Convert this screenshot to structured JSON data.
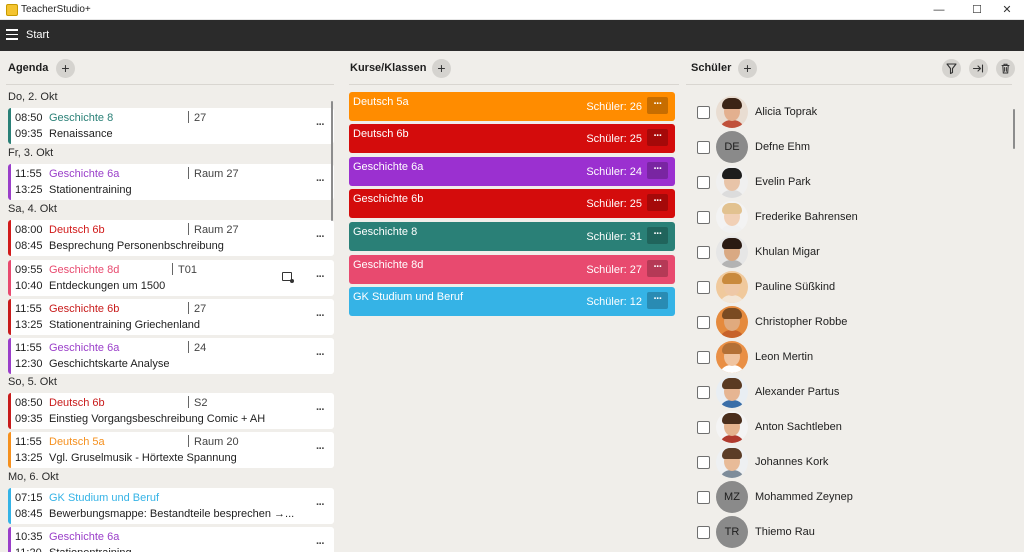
{
  "window": {
    "title": "TeacherStudio+",
    "minimize": "—",
    "maximize": "☐",
    "close": "✕"
  },
  "header": {
    "title": "Start"
  },
  "agenda": {
    "title": "Agenda",
    "add_label": "+",
    "more_label": "···",
    "days": [
      {
        "label": "Do, 2. Okt",
        "events": [
          {
            "start": "08:50",
            "end": "09:35",
            "course": "Geschichte 8",
            "room": "27",
            "title": "Renaissance",
            "color": "#2a8077"
          }
        ]
      },
      {
        "label": "Fr, 3. Okt",
        "events": [
          {
            "start": "11:55",
            "end": "13:25",
            "course": "Geschichte 6a",
            "room": "Raum 27",
            "title": "Stationentraining",
            "color": "#9a3ec9"
          }
        ]
      },
      {
        "label": "Sa, 4. Okt",
        "events": [
          {
            "start": "08:00",
            "end": "08:45",
            "course": "Deutsch 6b",
            "room": "Raum 27",
            "title": "Besprechung Personenbschreibung",
            "color": "#d11a1a"
          },
          {
            "start": "09:55",
            "end": "10:40",
            "course": "Geschichte 8d",
            "room": "T01",
            "title": "Entdeckungen um 1500",
            "color": "#e84a6f",
            "has_notes": true
          },
          {
            "start": "11:55",
            "end": "13:25",
            "course": "Geschichte 6b",
            "room": "27",
            "title": "Stationentraining Griechenland",
            "color": "#c81b1b"
          },
          {
            "start": "11:55",
            "end": "12:30",
            "course": "Geschichte 6a",
            "room": "24",
            "title": "Geschichtskarte Analyse",
            "color": "#9a3ec9"
          }
        ]
      },
      {
        "label": "So, 5. Okt",
        "events": [
          {
            "start": "08:50",
            "end": "09:35",
            "course": "Deutsch 6b",
            "room": "S2",
            "title": "Einstieg Vorgangsbeschreibung Comic + AH",
            "color": "#c81b1b"
          },
          {
            "start": "11:55",
            "end": "13:25",
            "course": "Deutsch 5a",
            "room": "Raum 20",
            "title": "Vgl. Gruselmusik - Hörtexte Spannung",
            "color": "#f5901e"
          }
        ]
      },
      {
        "label": "Mo, 6. Okt",
        "events": [
          {
            "start": "07:15",
            "end": "08:45",
            "course": "GK Studium und Beruf",
            "room": "",
            "title": "Bewerbungsmappe: Bestandteile besprechen →...",
            "color": "#35b3e6"
          },
          {
            "start": "10:35",
            "end": "11:20",
            "course": "Geschichte 6a",
            "room": "",
            "title": "Stationentraining",
            "color": "#9a3ec9"
          }
        ]
      }
    ]
  },
  "kurse": {
    "title": "Kurse/Klassen",
    "add_label": "+",
    "more_label": "···",
    "items": [
      {
        "name": "Deutsch 5a",
        "count": "Schüler: 26",
        "color": "#ff8c00"
      },
      {
        "name": "Deutsch 6b",
        "count": "Schüler: 25",
        "color": "#d40c0c"
      },
      {
        "name": "Geschichte 6a",
        "count": "Schüler: 24",
        "color": "#9b30d0"
      },
      {
        "name": "Geschichte 6b",
        "count": "Schüler: 25",
        "color": "#d40c0c"
      },
      {
        "name": "Geschichte 8",
        "count": "Schüler: 31",
        "color": "#2a8077"
      },
      {
        "name": "Geschichte 8d",
        "count": "Schüler: 27",
        "color": "#e84a6f"
      },
      {
        "name": "GK Studium und Beruf",
        "count": "Schüler: 12",
        "color": "#35b3e6"
      }
    ]
  },
  "schueler": {
    "title": "Schüler",
    "add_label": "+",
    "items": [
      {
        "name": "Alicia Toprak",
        "initials": "",
        "photo": true,
        "hair": "#3b2416",
        "skin": "#e3b08f",
        "shirt": "#c0503a",
        "bg": "#e9ddd2"
      },
      {
        "name": "Defne Ehm",
        "initials": "DE",
        "photo": false
      },
      {
        "name": "Evelin Park",
        "initials": "",
        "photo": true,
        "hair": "#1d1d1d",
        "skin": "#e8c4a8",
        "shirt": "#dcdcdc",
        "bg": "#f0f0f0"
      },
      {
        "name": "Frederike Bahrensen",
        "initials": "",
        "photo": true,
        "hair": "#e2c290",
        "skin": "#f1d0b6",
        "shirt": "#f0f0f0",
        "bg": "#f3f3f3"
      },
      {
        "name": "Khulan Migar",
        "initials": "",
        "photo": true,
        "hair": "#2a1a12",
        "skin": "#d9a983",
        "shirt": "#b3b3b3",
        "bg": "#e6e6e6"
      },
      {
        "name": "Pauline Süßkind",
        "initials": "",
        "photo": true,
        "hair": "#c98a3e",
        "skin": "#efc8a6",
        "shirt": "#f3e6d6",
        "bg": "#f0c99c"
      },
      {
        "name": "Christopher Robbe",
        "initials": "",
        "photo": true,
        "hair": "#7a4b22",
        "skin": "#e0aa7e",
        "shirt": "#c7622a",
        "bg": "#e58a3d"
      },
      {
        "name": "Leon Mertin",
        "initials": "",
        "photo": true,
        "hair": "#b37036",
        "skin": "#f0c4a0",
        "shirt": "#ffffff",
        "bg": "#e98f45"
      },
      {
        "name": "Alexander Partus",
        "initials": "",
        "photo": true,
        "hair": "#5a3a22",
        "skin": "#e6b592",
        "shirt": "#3a6ea8",
        "bg": "#e9eef3"
      },
      {
        "name": "Anton Sachtleben",
        "initials": "",
        "photo": true,
        "hair": "#4a2e1c",
        "skin": "#e5b38e",
        "shirt": "#b03a2e",
        "bg": "#f4f4f4"
      },
      {
        "name": "Johannes Kork",
        "initials": "",
        "photo": true,
        "hair": "#5c3d27",
        "skin": "#e8bb98",
        "shirt": "#7d8c9a",
        "bg": "#eef0f2"
      },
      {
        "name": "Mohammed Zeynep",
        "initials": "MZ",
        "photo": false
      },
      {
        "name": "Thiemo Rau",
        "initials": "TR",
        "photo": false
      }
    ]
  }
}
